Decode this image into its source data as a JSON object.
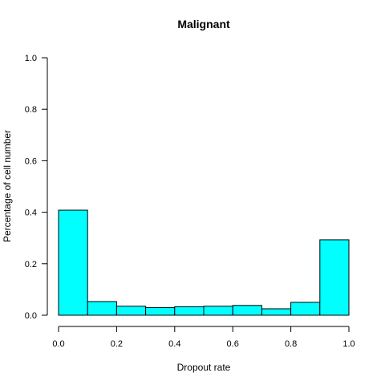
{
  "chart_data": {
    "type": "bar",
    "title": "Malignant",
    "xlabel": "Dropout rate",
    "ylabel": "Percentage of cell number",
    "xlim": [
      0,
      1
    ],
    "ylim": [
      0,
      1
    ],
    "bins": [
      {
        "start": 0.0,
        "end": 0.1,
        "value": 0.408
      },
      {
        "start": 0.1,
        "end": 0.2,
        "value": 0.053
      },
      {
        "start": 0.2,
        "end": 0.3,
        "value": 0.035
      },
      {
        "start": 0.3,
        "end": 0.4,
        "value": 0.03
      },
      {
        "start": 0.4,
        "end": 0.5,
        "value": 0.033
      },
      {
        "start": 0.5,
        "end": 0.6,
        "value": 0.035
      },
      {
        "start": 0.6,
        "end": 0.7,
        "value": 0.038
      },
      {
        "start": 0.7,
        "end": 0.8,
        "value": 0.025
      },
      {
        "start": 0.8,
        "end": 0.9,
        "value": 0.05
      },
      {
        "start": 0.9,
        "end": 1.0,
        "value": 0.293
      }
    ],
    "xticks": [
      "0.0",
      "0.2",
      "0.4",
      "0.6",
      "0.8",
      "1.0"
    ],
    "yticks": [
      "0.0",
      "0.2",
      "0.4",
      "0.6",
      "0.8",
      "1.0"
    ],
    "bar_color": "#00FFFF",
    "grid": false,
    "legend": "none"
  }
}
